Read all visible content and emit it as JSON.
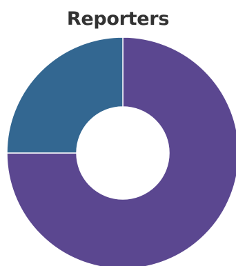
{
  "chart_data": {
    "type": "pie",
    "title": "Reporters",
    "donut": true,
    "slices": [
      {
        "value": 75,
        "color": "#5b4790"
      },
      {
        "value": 25,
        "color": "#336791"
      }
    ],
    "separator_color": "#ffffff"
  }
}
